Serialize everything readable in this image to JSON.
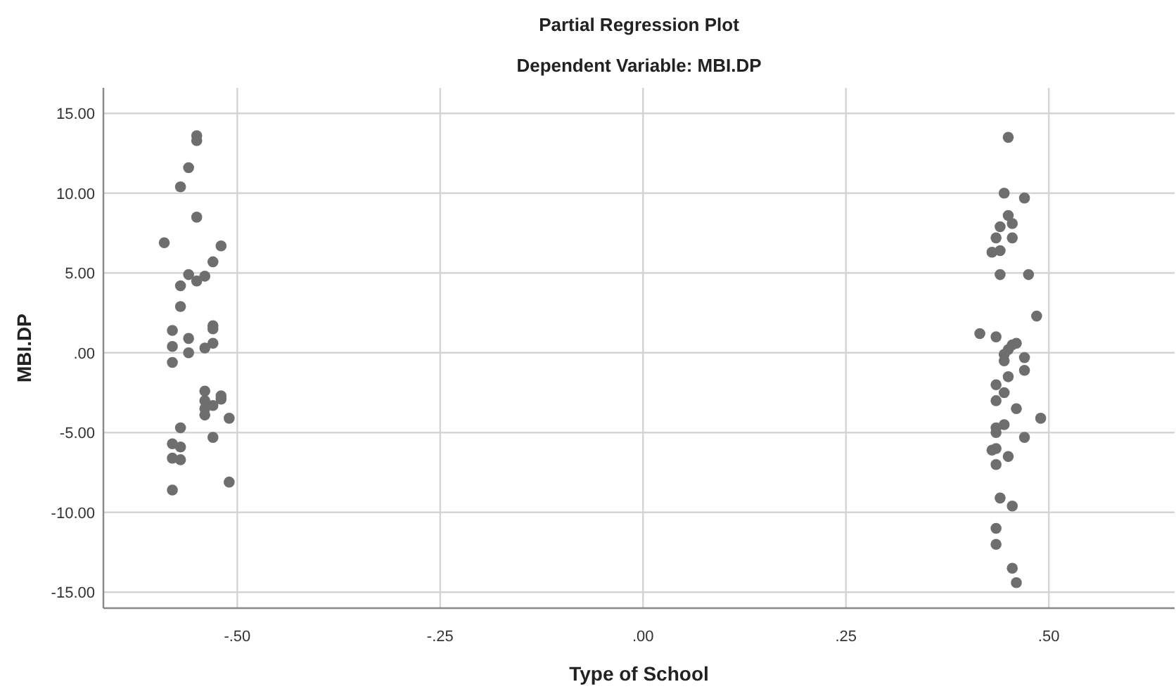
{
  "chart_data": {
    "type": "scatter",
    "title": "Partial Regression Plot",
    "subtitle": "Dependent Variable: MBI.DP",
    "xlabel": "Type of School",
    "ylabel": "MBI.DP",
    "x": [
      -0.55,
      -0.55,
      -0.56,
      -0.57,
      -0.55,
      -0.59,
      -0.52,
      -0.53,
      -0.56,
      -0.55,
      -0.54,
      -0.57,
      -0.57,
      -0.58,
      -0.53,
      -0.53,
      -0.56,
      -0.58,
      -0.53,
      -0.54,
      -0.56,
      -0.58,
      -0.54,
      -0.52,
      -0.52,
      -0.54,
      -0.53,
      -0.54,
      -0.54,
      -0.51,
      -0.57,
      -0.53,
      -0.58,
      -0.57,
      -0.58,
      -0.57,
      -0.51,
      -0.58,
      0.45,
      0.445,
      0.47,
      0.45,
      0.455,
      0.44,
      0.435,
      0.455,
      0.43,
      0.44,
      0.44,
      0.475,
      0.485,
      0.415,
      0.435,
      0.46,
      0.455,
      0.45,
      0.445,
      0.445,
      0.47,
      0.47,
      0.45,
      0.435,
      0.445,
      0.435,
      0.46,
      0.49,
      0.445,
      0.435,
      0.435,
      0.47,
      0.435,
      0.43,
      0.45,
      0.435,
      0.44,
      0.455,
      0.435,
      0.435,
      0.455,
      0.46
    ],
    "values": [
      13.6,
      13.3,
      11.6,
      10.4,
      8.5,
      6.9,
      6.7,
      5.7,
      4.9,
      4.5,
      4.8,
      4.2,
      2.9,
      1.4,
      1.7,
      1.5,
      0.9,
      0.4,
      0.6,
      0.3,
      0.0,
      -0.6,
      -2.4,
      -2.7,
      -2.9,
      -3.0,
      -3.3,
      -3.5,
      -3.9,
      -4.1,
      -4.7,
      -5.3,
      -5.7,
      -5.9,
      -6.6,
      -6.7,
      -8.1,
      -8.6,
      13.5,
      10.0,
      9.7,
      8.6,
      8.1,
      7.9,
      7.2,
      7.2,
      6.3,
      6.4,
      4.9,
      4.9,
      2.3,
      1.2,
      1.0,
      0.6,
      0.5,
      0.2,
      -0.1,
      -0.5,
      -0.3,
      -1.1,
      -1.5,
      -2.0,
      -2.5,
      -3.0,
      -3.5,
      -4.1,
      -4.5,
      -4.7,
      -5.0,
      -5.3,
      -6.0,
      -6.1,
      -6.5,
      -7.0,
      -9.1,
      -9.6,
      -11.0,
      -12.0,
      -13.5,
      -14.4
    ],
    "color": "#6e6e6e",
    "marker": "circle",
    "xlim": [
      -0.665,
      0.655
    ],
    "ylim": [
      -16.0,
      16.6
    ],
    "xticks": [
      {
        "value": -0.5,
        "label": "-.50"
      },
      {
        "value": -0.25,
        "label": "-.25"
      },
      {
        "value": 0,
        "label": ".00"
      },
      {
        "value": 0.25,
        "label": ".25"
      },
      {
        "value": 0.5,
        "label": ".50"
      }
    ],
    "yticks": [
      {
        "value": 15,
        "label": "15.00"
      },
      {
        "value": 10,
        "label": "10.00"
      },
      {
        "value": 5,
        "label": "5.00"
      },
      {
        "value": 0,
        "label": ".00"
      },
      {
        "value": -5,
        "label": "-5.00"
      },
      {
        "value": -10,
        "label": "-10.00"
      },
      {
        "value": -15,
        "label": "-15.00"
      }
    ],
    "grid": true
  }
}
